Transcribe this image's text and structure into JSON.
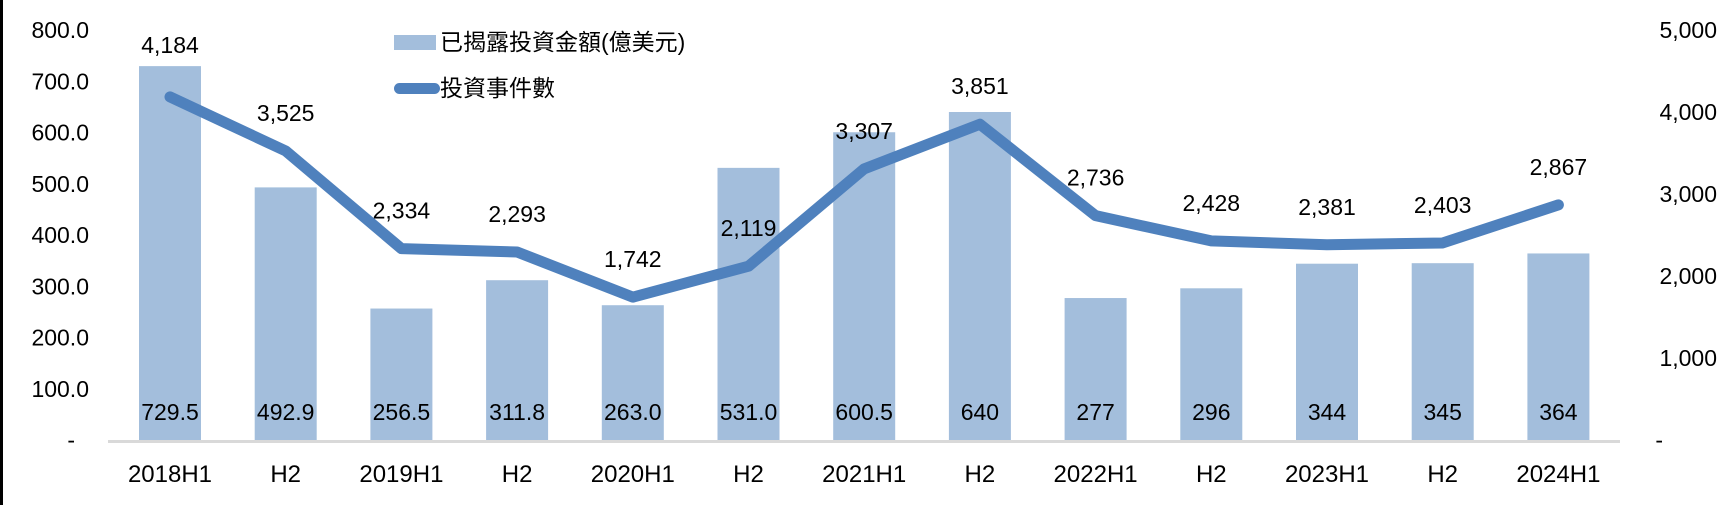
{
  "chart_data": {
    "type": "bar",
    "subtype": "combo-bar-line",
    "title": "",
    "categories": [
      "2018H1",
      "H2",
      "2019H1",
      "H2",
      "2020H1",
      "H2",
      "2021H1",
      "H2",
      "2022H1",
      "H2",
      "2023H1",
      "H2",
      "2024H1"
    ],
    "series": [
      {
        "name": "已揭露投資金額(億美元)",
        "type": "bar",
        "axis": "left",
        "color": "#A3BEDC",
        "values": [
          729.5,
          492.9,
          256.5,
          311.8,
          263.0,
          531.0,
          600.5,
          640,
          277,
          296,
          344,
          345,
          364
        ],
        "labels": [
          "729.5",
          "492.9",
          "256.5",
          "311.8",
          "263.0",
          "531.0",
          "600.5",
          "640",
          "277",
          "296",
          "344",
          "345",
          "364"
        ]
      },
      {
        "name": "投資事件數",
        "type": "line",
        "axis": "right",
        "color": "#4F81BD",
        "values": [
          4184,
          3525,
          2334,
          2293,
          1742,
          2119,
          3307,
          3851,
          2736,
          2428,
          2381,
          2403,
          2867
        ],
        "labels": [
          "4,184",
          "3,525",
          "2,334",
          "2,293",
          "1,742",
          "2,119",
          "3,307",
          "3,851",
          "2,736",
          "2,428",
          "2,381",
          "2,403",
          "2,867"
        ]
      }
    ],
    "left_axis": {
      "min": 0,
      "max": 800,
      "tick_labels": [
        "800.0",
        "700.0",
        "600.0",
        "500.0",
        "400.0",
        "300.0",
        "200.0",
        "100.0",
        "-"
      ]
    },
    "right_axis": {
      "min": 0,
      "max": 5000,
      "tick_labels": [
        "5,000",
        "4,000",
        "3,000",
        "2,000",
        "1,000",
        "-"
      ]
    },
    "legend_position": "top-center",
    "grid": "off",
    "colors": {
      "bar_fill": "#A3BEDC",
      "line_stroke": "#4F81BD",
      "axis_line": "#D9D9D9",
      "text": "#000000"
    }
  }
}
